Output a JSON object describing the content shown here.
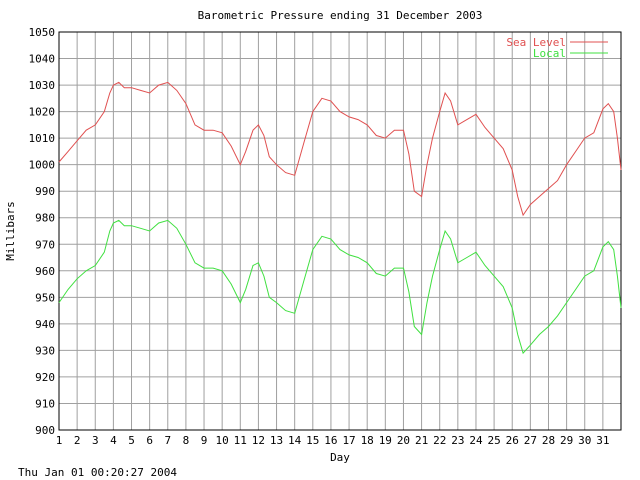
{
  "chart_data": {
    "type": "line",
    "title": "Barometric Pressure ending 31 December 2003",
    "xlabel": "Day",
    "ylabel": "Millibars",
    "xlim": [
      1,
      32
    ],
    "ylim": [
      900,
      1050
    ],
    "x_ticks": [
      "1",
      "2",
      "3",
      "4",
      "5",
      "6",
      "7",
      "8",
      "9",
      "10",
      "11",
      "12",
      "13",
      "14",
      "15",
      "16",
      "17",
      "18",
      "19",
      "20",
      "21",
      "22",
      "23",
      "24",
      "25",
      "26",
      "27",
      "28",
      "29",
      "30",
      "31"
    ],
    "y_ticks": [
      900,
      910,
      920,
      930,
      940,
      950,
      960,
      970,
      980,
      990,
      1000,
      1010,
      1020,
      1030,
      1040,
      1050
    ],
    "grid": true,
    "legend_position": "top-right",
    "series": [
      {
        "name": "Sea Level",
        "color": "#e05050",
        "points": [
          [
            1.0,
            1001
          ],
          [
            1.5,
            1005
          ],
          [
            2.0,
            1009
          ],
          [
            2.5,
            1013
          ],
          [
            3.0,
            1015
          ],
          [
            3.5,
            1020
          ],
          [
            3.8,
            1027
          ],
          [
            4.0,
            1030
          ],
          [
            4.3,
            1031
          ],
          [
            4.6,
            1029
          ],
          [
            5.0,
            1029
          ],
          [
            5.5,
            1028
          ],
          [
            6.0,
            1027
          ],
          [
            6.5,
            1030
          ],
          [
            7.0,
            1031
          ],
          [
            7.5,
            1028
          ],
          [
            8.0,
            1023
          ],
          [
            8.5,
            1015
          ],
          [
            9.0,
            1013
          ],
          [
            9.5,
            1013
          ],
          [
            10.0,
            1012
          ],
          [
            10.5,
            1007
          ],
          [
            11.0,
            1000
          ],
          [
            11.3,
            1005
          ],
          [
            11.7,
            1013
          ],
          [
            12.0,
            1015
          ],
          [
            12.3,
            1011
          ],
          [
            12.6,
            1003
          ],
          [
            13.0,
            1000
          ],
          [
            13.5,
            997
          ],
          [
            14.0,
            996
          ],
          [
            14.5,
            1008
          ],
          [
            15.0,
            1020
          ],
          [
            15.5,
            1025
          ],
          [
            16.0,
            1024
          ],
          [
            16.5,
            1020
          ],
          [
            17.0,
            1018
          ],
          [
            17.5,
            1017
          ],
          [
            18.0,
            1015
          ],
          [
            18.5,
            1011
          ],
          [
            19.0,
            1010
          ],
          [
            19.5,
            1013
          ],
          [
            20.0,
            1013
          ],
          [
            20.3,
            1004
          ],
          [
            20.6,
            990
          ],
          [
            21.0,
            988
          ],
          [
            21.3,
            1000
          ],
          [
            21.6,
            1010
          ],
          [
            22.0,
            1020
          ],
          [
            22.3,
            1027
          ],
          [
            22.6,
            1024
          ],
          [
            23.0,
            1015
          ],
          [
            23.5,
            1017
          ],
          [
            24.0,
            1019
          ],
          [
            24.5,
            1014
          ],
          [
            25.0,
            1010
          ],
          [
            25.5,
            1006
          ],
          [
            26.0,
            998
          ],
          [
            26.3,
            988
          ],
          [
            26.6,
            981
          ],
          [
            27.0,
            985
          ],
          [
            27.5,
            988
          ],
          [
            28.0,
            991
          ],
          [
            28.5,
            994
          ],
          [
            29.0,
            1000
          ],
          [
            29.5,
            1005
          ],
          [
            30.0,
            1010
          ],
          [
            30.5,
            1012
          ],
          [
            31.0,
            1021
          ],
          [
            31.3,
            1023
          ],
          [
            31.6,
            1020
          ],
          [
            31.8,
            1010
          ],
          [
            32.0,
            998
          ]
        ]
      },
      {
        "name": "Local",
        "color": "#40e040",
        "points": [
          [
            1.0,
            948
          ],
          [
            1.5,
            953
          ],
          [
            2.0,
            957
          ],
          [
            2.5,
            960
          ],
          [
            3.0,
            962
          ],
          [
            3.5,
            967
          ],
          [
            3.8,
            975
          ],
          [
            4.0,
            978
          ],
          [
            4.3,
            979
          ],
          [
            4.6,
            977
          ],
          [
            5.0,
            977
          ],
          [
            5.5,
            976
          ],
          [
            6.0,
            975
          ],
          [
            6.5,
            978
          ],
          [
            7.0,
            979
          ],
          [
            7.5,
            976
          ],
          [
            8.0,
            970
          ],
          [
            8.5,
            963
          ],
          [
            9.0,
            961
          ],
          [
            9.5,
            961
          ],
          [
            10.0,
            960
          ],
          [
            10.5,
            955
          ],
          [
            11.0,
            948
          ],
          [
            11.3,
            953
          ],
          [
            11.7,
            962
          ],
          [
            12.0,
            963
          ],
          [
            12.3,
            958
          ],
          [
            12.6,
            950
          ],
          [
            13.0,
            948
          ],
          [
            13.5,
            945
          ],
          [
            14.0,
            944
          ],
          [
            14.5,
            956
          ],
          [
            15.0,
            968
          ],
          [
            15.5,
            973
          ],
          [
            16.0,
            972
          ],
          [
            16.5,
            968
          ],
          [
            17.0,
            966
          ],
          [
            17.5,
            965
          ],
          [
            18.0,
            963
          ],
          [
            18.5,
            959
          ],
          [
            19.0,
            958
          ],
          [
            19.5,
            961
          ],
          [
            20.0,
            961
          ],
          [
            20.3,
            952
          ],
          [
            20.6,
            939
          ],
          [
            21.0,
            936
          ],
          [
            21.3,
            948
          ],
          [
            21.6,
            958
          ],
          [
            22.0,
            968
          ],
          [
            22.3,
            975
          ],
          [
            22.6,
            972
          ],
          [
            23.0,
            963
          ],
          [
            23.5,
            965
          ],
          [
            24.0,
            967
          ],
          [
            24.5,
            962
          ],
          [
            25.0,
            958
          ],
          [
            25.5,
            954
          ],
          [
            26.0,
            946
          ],
          [
            26.3,
            936
          ],
          [
            26.6,
            929
          ],
          [
            27.0,
            932
          ],
          [
            27.5,
            936
          ],
          [
            28.0,
            939
          ],
          [
            28.5,
            943
          ],
          [
            29.0,
            948
          ],
          [
            29.5,
            953
          ],
          [
            30.0,
            958
          ],
          [
            30.5,
            960
          ],
          [
            31.0,
            969
          ],
          [
            31.3,
            971
          ],
          [
            31.6,
            968
          ],
          [
            31.8,
            958
          ],
          [
            32.0,
            946
          ]
        ]
      }
    ]
  },
  "footer_timestamp": "Thu Jan 01 00:20:27 2004"
}
